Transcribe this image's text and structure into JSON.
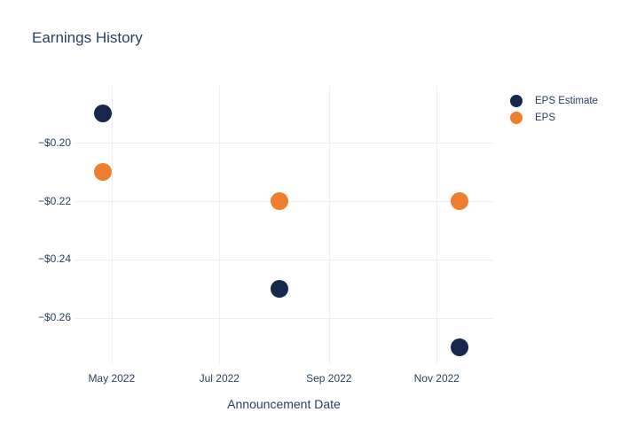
{
  "chart": {
    "title": "Earnings History",
    "x_axis_title": "Announcement Date"
  },
  "chart_data": {
    "type": "scatter",
    "title": "Earnings History",
    "xlabel": "Announcement Date",
    "ylabel": "",
    "x": [
      "2022-04-26",
      "2022-08-04",
      "2022-11-14"
    ],
    "series": [
      {
        "name": "EPS Estimate",
        "color": "#16294c",
        "values": [
          -0.19,
          -0.25,
          -0.27
        ]
      },
      {
        "name": "EPS",
        "color": "#ef7e2e",
        "values": [
          -0.21,
          -0.22,
          -0.22
        ]
      }
    ],
    "xlim": [
      "2022-04-10",
      "2022-12-03"
    ],
    "ylim": [
      -0.2758,
      -0.1806
    ],
    "x_ticks": [
      {
        "date": "2022-05-01",
        "label": "May 2022"
      },
      {
        "date": "2022-07-01",
        "label": "Jul 2022"
      },
      {
        "date": "2022-09-01",
        "label": "Sep 2022"
      },
      {
        "date": "2022-11-01",
        "label": "Nov 2022"
      }
    ],
    "y_ticks": [
      {
        "value": -0.2,
        "label": "−$0.20"
      },
      {
        "value": -0.22,
        "label": "−$0.22"
      },
      {
        "value": -0.24,
        "label": "−$0.24"
      },
      {
        "value": -0.26,
        "label": "−$0.26"
      }
    ],
    "grid": true,
    "legend_position": "top-right",
    "marker_size_px": 20,
    "colors": {
      "title_text": "#2a3f5f",
      "tick_text": "#2a3f5f",
      "gridline": "#ebf0f8",
      "background": "#ffffff"
    }
  }
}
